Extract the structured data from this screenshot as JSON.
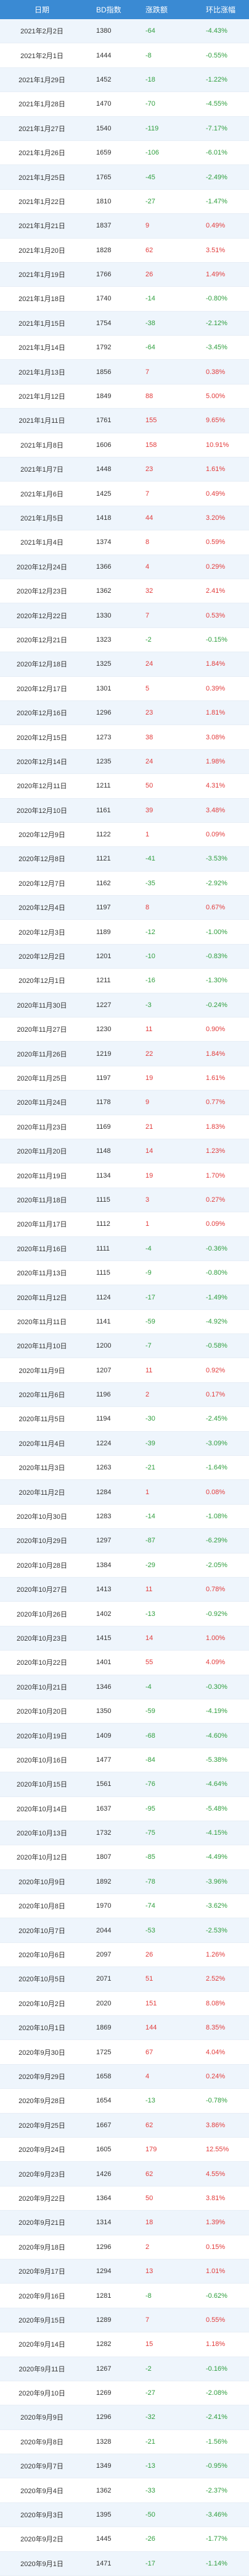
{
  "table": {
    "headers": [
      "日期",
      "BD指数",
      "涨跌额",
      "环比涨幅"
    ],
    "rows": [
      [
        "2021年2月2日",
        "1380",
        "-64",
        "-4.43%"
      ],
      [
        "2021年2月1日",
        "1444",
        "-8",
        "-0.55%"
      ],
      [
        "2021年1月29日",
        "1452",
        "-18",
        "-1.22%"
      ],
      [
        "2021年1月28日",
        "1470",
        "-70",
        "-4.55%"
      ],
      [
        "2021年1月27日",
        "1540",
        "-119",
        "-7.17%"
      ],
      [
        "2021年1月26日",
        "1659",
        "-106",
        "-6.01%"
      ],
      [
        "2021年1月25日",
        "1765",
        "-45",
        "-2.49%"
      ],
      [
        "2021年1月22日",
        "1810",
        "-27",
        "-1.47%"
      ],
      [
        "2021年1月21日",
        "1837",
        "9",
        "0.49%"
      ],
      [
        "2021年1月20日",
        "1828",
        "62",
        "3.51%"
      ],
      [
        "2021年1月19日",
        "1766",
        "26",
        "1.49%"
      ],
      [
        "2021年1月18日",
        "1740",
        "-14",
        "-0.80%"
      ],
      [
        "2021年1月15日",
        "1754",
        "-38",
        "-2.12%"
      ],
      [
        "2021年1月14日",
        "1792",
        "-64",
        "-3.45%"
      ],
      [
        "2021年1月13日",
        "1856",
        "7",
        "0.38%"
      ],
      [
        "2021年1月12日",
        "1849",
        "88",
        "5.00%"
      ],
      [
        "2021年1月11日",
        "1761",
        "155",
        "9.65%"
      ],
      [
        "2021年1月8日",
        "1606",
        "158",
        "10.91%"
      ],
      [
        "2021年1月7日",
        "1448",
        "23",
        "1.61%"
      ],
      [
        "2021年1月6日",
        "1425",
        "7",
        "0.49%"
      ],
      [
        "2021年1月5日",
        "1418",
        "44",
        "3.20%"
      ],
      [
        "2021年1月4日",
        "1374",
        "8",
        "0.59%"
      ],
      [
        "2020年12月24日",
        "1366",
        "4",
        "0.29%"
      ],
      [
        "2020年12月23日",
        "1362",
        "32",
        "2.41%"
      ],
      [
        "2020年12月22日",
        "1330",
        "7",
        "0.53%"
      ],
      [
        "2020年12月21日",
        "1323",
        "-2",
        "-0.15%"
      ],
      [
        "2020年12月18日",
        "1325",
        "24",
        "1.84%"
      ],
      [
        "2020年12月17日",
        "1301",
        "5",
        "0.39%"
      ],
      [
        "2020年12月16日",
        "1296",
        "23",
        "1.81%"
      ],
      [
        "2020年12月15日",
        "1273",
        "38",
        "3.08%"
      ],
      [
        "2020年12月14日",
        "1235",
        "24",
        "1.98%"
      ],
      [
        "2020年12月11日",
        "1211",
        "50",
        "4.31%"
      ],
      [
        "2020年12月10日",
        "1161",
        "39",
        "3.48%"
      ],
      [
        "2020年12月9日",
        "1122",
        "1",
        "0.09%"
      ],
      [
        "2020年12月8日",
        "1121",
        "-41",
        "-3.53%"
      ],
      [
        "2020年12月7日",
        "1162",
        "-35",
        "-2.92%"
      ],
      [
        "2020年12月4日",
        "1197",
        "8",
        "0.67%"
      ],
      [
        "2020年12月3日",
        "1189",
        "-12",
        "-1.00%"
      ],
      [
        "2020年12月2日",
        "1201",
        "-10",
        "-0.83%"
      ],
      [
        "2020年12月1日",
        "1211",
        "-16",
        "-1.30%"
      ],
      [
        "2020年11月30日",
        "1227",
        "-3",
        "-0.24%"
      ],
      [
        "2020年11月27日",
        "1230",
        "11",
        "0.90%"
      ],
      [
        "2020年11月26日",
        "1219",
        "22",
        "1.84%"
      ],
      [
        "2020年11月25日",
        "1197",
        "19",
        "1.61%"
      ],
      [
        "2020年11月24日",
        "1178",
        "9",
        "0.77%"
      ],
      [
        "2020年11月23日",
        "1169",
        "21",
        "1.83%"
      ],
      [
        "2020年11月20日",
        "1148",
        "14",
        "1.23%"
      ],
      [
        "2020年11月19日",
        "1134",
        "19",
        "1.70%"
      ],
      [
        "2020年11月18日",
        "1115",
        "3",
        "0.27%"
      ],
      [
        "2020年11月17日",
        "1112",
        "1",
        "0.09%"
      ],
      [
        "2020年11月16日",
        "1111",
        "-4",
        "-0.36%"
      ],
      [
        "2020年11月13日",
        "1115",
        "-9",
        "-0.80%"
      ],
      [
        "2020年11月12日",
        "1124",
        "-17",
        "-1.49%"
      ],
      [
        "2020年11月11日",
        "1141",
        "-59",
        "-4.92%"
      ],
      [
        "2020年11月10日",
        "1200",
        "-7",
        "-0.58%"
      ],
      [
        "2020年11月9日",
        "1207",
        "11",
        "0.92%"
      ],
      [
        "2020年11月6日",
        "1196",
        "2",
        "0.17%"
      ],
      [
        "2020年11月5日",
        "1194",
        "-30",
        "-2.45%"
      ],
      [
        "2020年11月4日",
        "1224",
        "-39",
        "-3.09%"
      ],
      [
        "2020年11月3日",
        "1263",
        "-21",
        "-1.64%"
      ],
      [
        "2020年11月2日",
        "1284",
        "1",
        "0.08%"
      ],
      [
        "2020年10月30日",
        "1283",
        "-14",
        "-1.08%"
      ],
      [
        "2020年10月29日",
        "1297",
        "-87",
        "-6.29%"
      ],
      [
        "2020年10月28日",
        "1384",
        "-29",
        "-2.05%"
      ],
      [
        "2020年10月27日",
        "1413",
        "11",
        "0.78%"
      ],
      [
        "2020年10月26日",
        "1402",
        "-13",
        "-0.92%"
      ],
      [
        "2020年10月23日",
        "1415",
        "14",
        "1.00%"
      ],
      [
        "2020年10月22日",
        "1401",
        "55",
        "4.09%"
      ],
      [
        "2020年10月21日",
        "1346",
        "-4",
        "-0.30%"
      ],
      [
        "2020年10月20日",
        "1350",
        "-59",
        "-4.19%"
      ],
      [
        "2020年10月19日",
        "1409",
        "-68",
        "-4.60%"
      ],
      [
        "2020年10月16日",
        "1477",
        "-84",
        "-5.38%"
      ],
      [
        "2020年10月15日",
        "1561",
        "-76",
        "-4.64%"
      ],
      [
        "2020年10月14日",
        "1637",
        "-95",
        "-5.48%"
      ],
      [
        "2020年10月13日",
        "1732",
        "-75",
        "-4.15%"
      ],
      [
        "2020年10月12日",
        "1807",
        "-85",
        "-4.49%"
      ],
      [
        "2020年10月9日",
        "1892",
        "-78",
        "-3.96%"
      ],
      [
        "2020年10月8日",
        "1970",
        "-74",
        "-3.62%"
      ],
      [
        "2020年10月7日",
        "2044",
        "-53",
        "-2.53%"
      ],
      [
        "2020年10月6日",
        "2097",
        "26",
        "1.26%"
      ],
      [
        "2020年10月5日",
        "2071",
        "51",
        "2.52%"
      ],
      [
        "2020年10月2日",
        "2020",
        "151",
        "8.08%"
      ],
      [
        "2020年10月1日",
        "1869",
        "144",
        "8.35%"
      ],
      [
        "2020年9月30日",
        "1725",
        "67",
        "4.04%"
      ],
      [
        "2020年9月29日",
        "1658",
        "4",
        "0.24%"
      ],
      [
        "2020年9月28日",
        "1654",
        "-13",
        "-0.78%"
      ],
      [
        "2020年9月25日",
        "1667",
        "62",
        "3.86%"
      ],
      [
        "2020年9月24日",
        "1605",
        "179",
        "12.55%"
      ],
      [
        "2020年9月23日",
        "1426",
        "62",
        "4.55%"
      ],
      [
        "2020年9月22日",
        "1364",
        "50",
        "3.81%"
      ],
      [
        "2020年9月21日",
        "1314",
        "18",
        "1.39%"
      ],
      [
        "2020年9月18日",
        "1296",
        "2",
        "0.15%"
      ],
      [
        "2020年9月17日",
        "1294",
        "13",
        "1.01%"
      ],
      [
        "2020年9月16日",
        "1281",
        "-8",
        "-0.62%"
      ],
      [
        "2020年9月15日",
        "1289",
        "7",
        "0.55%"
      ],
      [
        "2020年9月14日",
        "1282",
        "15",
        "1.18%"
      ],
      [
        "2020年9月11日",
        "1267",
        "-2",
        "-0.16%"
      ],
      [
        "2020年9月10日",
        "1269",
        "-27",
        "-2.08%"
      ],
      [
        "2020年9月9日",
        "1296",
        "-32",
        "-2.41%"
      ],
      [
        "2020年9月8日",
        "1328",
        "-21",
        "-1.56%"
      ],
      [
        "2020年9月7日",
        "1349",
        "-13",
        "-0.95%"
      ],
      [
        "2020年9月4日",
        "1362",
        "-33",
        "-2.37%"
      ],
      [
        "2020年9月3日",
        "1395",
        "-50",
        "-3.46%"
      ],
      [
        "2020年9月2日",
        "1445",
        "-26",
        "-1.77%"
      ],
      [
        "2020年9月1日",
        "1471",
        "-17",
        "-1.14%"
      ]
    ]
  },
  "colors": {
    "header_bg": "#3a8ad3",
    "header_text": "#ffffff",
    "row_alt_bg": "#eef5fc",
    "up": "#e23b3b",
    "down": "#2e9e3d"
  }
}
